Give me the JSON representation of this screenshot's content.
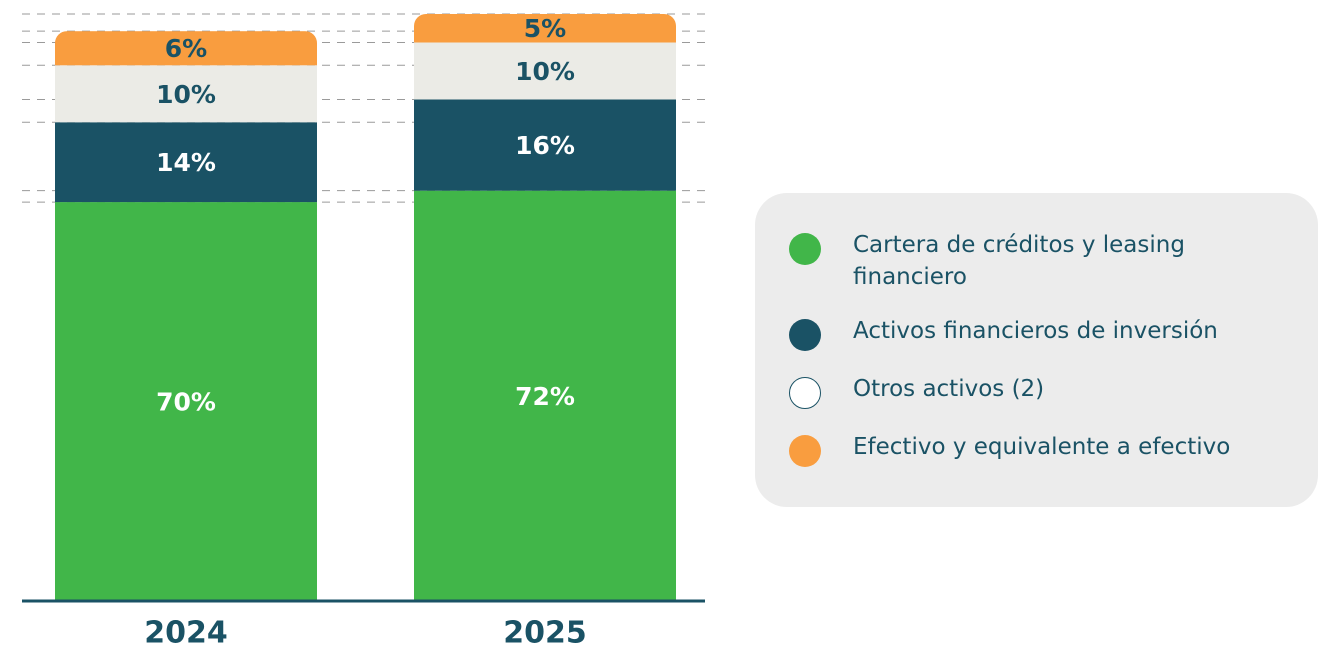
{
  "chart_data": {
    "type": "stacked_bar",
    "categories": [
      "2024",
      "2025"
    ],
    "series": [
      {
        "name": "Cartera de créditos y leasing financiero",
        "color": "#41b649",
        "label_color": "#ffffff",
        "values": [
          70,
          72
        ],
        "value_labels": [
          "70%",
          "72%"
        ]
      },
      {
        "name": "Activos financieros de inversión",
        "color": "#1a5265",
        "label_color": "#ffffff",
        "values": [
          14,
          16
        ],
        "value_labels": [
          "14%",
          "16%"
        ]
      },
      {
        "name": "Otros activos (2)",
        "color": "#ebebe6",
        "outline": "#1a5265",
        "label_color": "#1a5265",
        "values": [
          10,
          10
        ],
        "value_labels": [
          "10%",
          "10%"
        ]
      },
      {
        "name": "Efectivo y equivalente a efectivo",
        "color": "#f99d3f",
        "label_color": "#1a5265",
        "values": [
          6,
          5
        ],
        "value_labels": [
          "6%",
          "5%"
        ]
      }
    ]
  }
}
